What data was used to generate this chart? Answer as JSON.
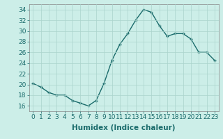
{
  "x": [
    0,
    1,
    2,
    3,
    4,
    5,
    6,
    7,
    8,
    9,
    10,
    11,
    12,
    13,
    14,
    15,
    16,
    17,
    18,
    19,
    20,
    21,
    22,
    23
  ],
  "y": [
    20.2,
    19.5,
    18.5,
    18.0,
    18.0,
    17.0,
    16.5,
    16.0,
    17.0,
    20.2,
    24.5,
    27.5,
    29.5,
    32.0,
    34.0,
    33.5,
    31.0,
    29.0,
    29.5,
    29.5,
    28.5,
    26.0,
    26.0,
    24.5
  ],
  "line_color": "#1a6b6b",
  "marker": "+",
  "marker_size": 3.5,
  "marker_linewidth": 1.0,
  "background_color": "#cceee8",
  "grid_color": "#aad4cc",
  "xlabel": "Humidex (Indice chaleur)",
  "xlim": [
    -0.5,
    23.5
  ],
  "ylim": [
    15,
    35
  ],
  "yticks": [
    16,
    18,
    20,
    22,
    24,
    26,
    28,
    30,
    32,
    34
  ],
  "xtick_labels": [
    "0",
    "1",
    "2",
    "3",
    "4",
    "5",
    "6",
    "7",
    "8",
    "9",
    "10",
    "11",
    "12",
    "13",
    "14",
    "15",
    "16",
    "17",
    "18",
    "19",
    "20",
    "21",
    "22",
    "23"
  ],
  "tick_fontsize": 6.5,
  "xlabel_fontsize": 7.5,
  "line_width": 1.0
}
